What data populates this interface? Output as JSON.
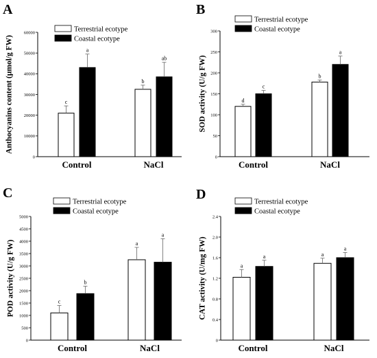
{
  "series_styles": [
    {
      "name": "Terrestrial ecotype",
      "fill": "#ffffff",
      "stroke": "#000000"
    },
    {
      "name": "Coastal ecotype",
      "fill": "#000000",
      "stroke": "#000000"
    }
  ],
  "chart_data": [
    {
      "type": "bar",
      "panel": "A",
      "ylabel": "Anthocyanins content (μmol/g FW)",
      "categories": [
        "Control",
        "NaCl"
      ],
      "series": [
        {
          "name": "Terrestrial ecotype",
          "values": [
            21000,
            32500
          ],
          "errors": [
            3500,
            2000
          ],
          "letters": [
            "c",
            "b"
          ]
        },
        {
          "name": "Coastal ecotype",
          "values": [
            43000,
            38500
          ],
          "errors": [
            6500,
            7000
          ],
          "letters": [
            "a",
            "ab"
          ]
        }
      ],
      "ylim": [
        0,
        60000
      ],
      "yticks": [
        0,
        10000,
        20000,
        30000,
        40000,
        50000,
        60000
      ],
      "legend": "top-left"
    },
    {
      "type": "bar",
      "panel": "B",
      "ylabel": "SOD activity (U/g FW)",
      "categories": [
        "Control",
        "NaCl"
      ],
      "series": [
        {
          "name": "Terrestrial ecotype",
          "values": [
            120,
            178
          ],
          "errors": [
            5,
            5
          ],
          "letters": [
            "d",
            "b"
          ]
        },
        {
          "name": "Coastal ecotype",
          "values": [
            150,
            220
          ],
          "errors": [
            8,
            20
          ],
          "letters": [
            "c",
            "a"
          ]
        }
      ],
      "ylim": [
        0,
        300
      ],
      "yticks": [
        0,
        50,
        100,
        150,
        200,
        250,
        300
      ],
      "legend": "top-left"
    },
    {
      "type": "bar",
      "panel": "C",
      "ylabel": "POD activity (U/g FW)",
      "categories": [
        "Control",
        "NaCl"
      ],
      "series": [
        {
          "name": "Terrestrial ecotype",
          "values": [
            1100,
            3250
          ],
          "errors": [
            300,
            500
          ],
          "letters": [
            "c",
            "a"
          ]
        },
        {
          "name": "Coastal ecotype",
          "values": [
            1880,
            3150
          ],
          "errors": [
            300,
            950
          ],
          "letters": [
            "b",
            "a"
          ]
        }
      ],
      "ylim": [
        0,
        5000
      ],
      "yticks": [
        0,
        500,
        1000,
        1500,
        2000,
        2500,
        3000,
        3500,
        4000,
        4500,
        5000
      ],
      "legend": "top-left"
    },
    {
      "type": "bar",
      "panel": "D",
      "ylabel": "CAT activity (U/mg FW)",
      "categories": [
        "Control",
        "NaCl"
      ],
      "series": [
        {
          "name": "Terrestrial ecotype",
          "values": [
            1.22,
            1.49
          ],
          "errors": [
            0.15,
            0.1
          ],
          "letters": [
            "a",
            "a"
          ]
        },
        {
          "name": "Coastal ecotype",
          "values": [
            1.43,
            1.6
          ],
          "errors": [
            0.12,
            0.1
          ],
          "letters": [
            "a",
            "a"
          ]
        }
      ],
      "ylim": [
        0,
        2.4
      ],
      "yticks": [
        "0",
        "0.4",
        "0.8",
        "1.2",
        "1.6",
        "2.0",
        "2.4"
      ],
      "legend": "top-left"
    }
  ]
}
